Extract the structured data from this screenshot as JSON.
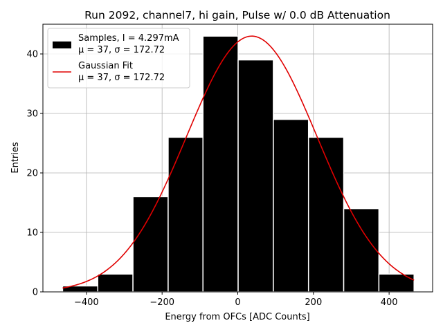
{
  "chart_data": {
    "type": "bar",
    "title": "Run 2092, channel7, hi gain, Pulse w/ 0.0 dB Attenuation",
    "xlabel": "Energy from OFCs [ADC Counts]",
    "ylabel": "Entries",
    "xlim": [
      -515,
      515
    ],
    "ylim": [
      0,
      45
    ],
    "xticks": [
      -400,
      -200,
      0,
      200,
      400
    ],
    "yticks": [
      0,
      10,
      20,
      30,
      40
    ],
    "grid": true,
    "legend_position": "top-left",
    "bins": [
      {
        "left": -463,
        "right": -370,
        "count": 1
      },
      {
        "left": -370,
        "right": -277,
        "count": 3
      },
      {
        "left": -277,
        "right": -184,
        "count": 16
      },
      {
        "left": -184,
        "right": -92,
        "count": 26
      },
      {
        "left": -92,
        "right": 1,
        "count": 43
      },
      {
        "left": 1,
        "right": 94,
        "count": 39
      },
      {
        "left": 94,
        "right": 187,
        "count": 29
      },
      {
        "left": 187,
        "right": 280,
        "count": 26
      },
      {
        "left": 280,
        "right": 373,
        "count": 14
      },
      {
        "left": 373,
        "right": 466,
        "count": 3
      }
    ],
    "series": [
      {
        "name": "Samples, I = 4.297mA",
        "sublabel": "μ = 37, σ = 172.72",
        "kind": "histogram",
        "color": "#000000"
      },
      {
        "name": "Gaussian Fit",
        "sublabel": "μ = 37, σ = 172.72",
        "kind": "line",
        "color": "#e00000",
        "mu": 37,
        "sigma": 172.72,
        "amplitude": 43,
        "range": [
          -463,
          466
        ]
      }
    ]
  }
}
